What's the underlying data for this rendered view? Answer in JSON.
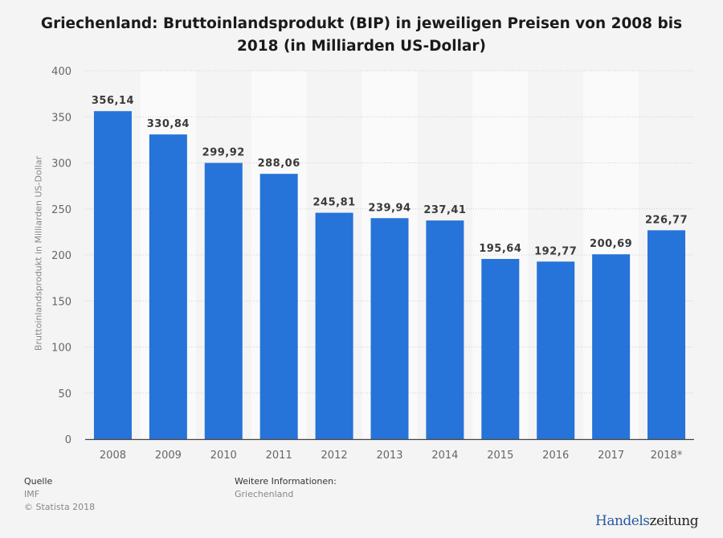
{
  "chart_data": {
    "type": "bar",
    "title": "Griechenland: Bruttoinlandsprodukt (BIP) in jeweiligen Preisen von 2008 bis 2018 (in Milliarden US-Dollar)",
    "title_lines": [
      "Griechenland: Bruttoinlandsprodukt (BIP) in jeweiligen Preisen von 2008 bis",
      "2018 (in Milliarden US-Dollar)"
    ],
    "xlabel": "",
    "ylabel": "Bruttoinlandsprodukt in Milliarden US-Dollar",
    "categories": [
      "2008",
      "2009",
      "2010",
      "2011",
      "2012",
      "2013",
      "2014",
      "2015",
      "2016",
      "2017",
      "2018*"
    ],
    "values": [
      356.14,
      330.84,
      299.92,
      288.06,
      245.81,
      239.94,
      237.41,
      195.64,
      192.77,
      200.69,
      226.77
    ],
    "value_labels": [
      "356,14",
      "330,84",
      "299,92",
      "288,06",
      "245,81",
      "239,94",
      "237,41",
      "195,64",
      "192,77",
      "200,69",
      "226,77"
    ],
    "ylim": [
      0,
      400
    ],
    "yticks": [
      0,
      50,
      100,
      150,
      200,
      250,
      300,
      350,
      400
    ],
    "grid": true,
    "legend": "none",
    "bar_color": "#2673d9"
  },
  "footer": {
    "source_heading": "Quelle",
    "source": "IMF",
    "copyright": "© Statista 2018",
    "info_heading": "Weitere Informationen:",
    "info": "Griechenland"
  },
  "logo": {
    "part1": "Handels",
    "part2": "zeitung"
  }
}
